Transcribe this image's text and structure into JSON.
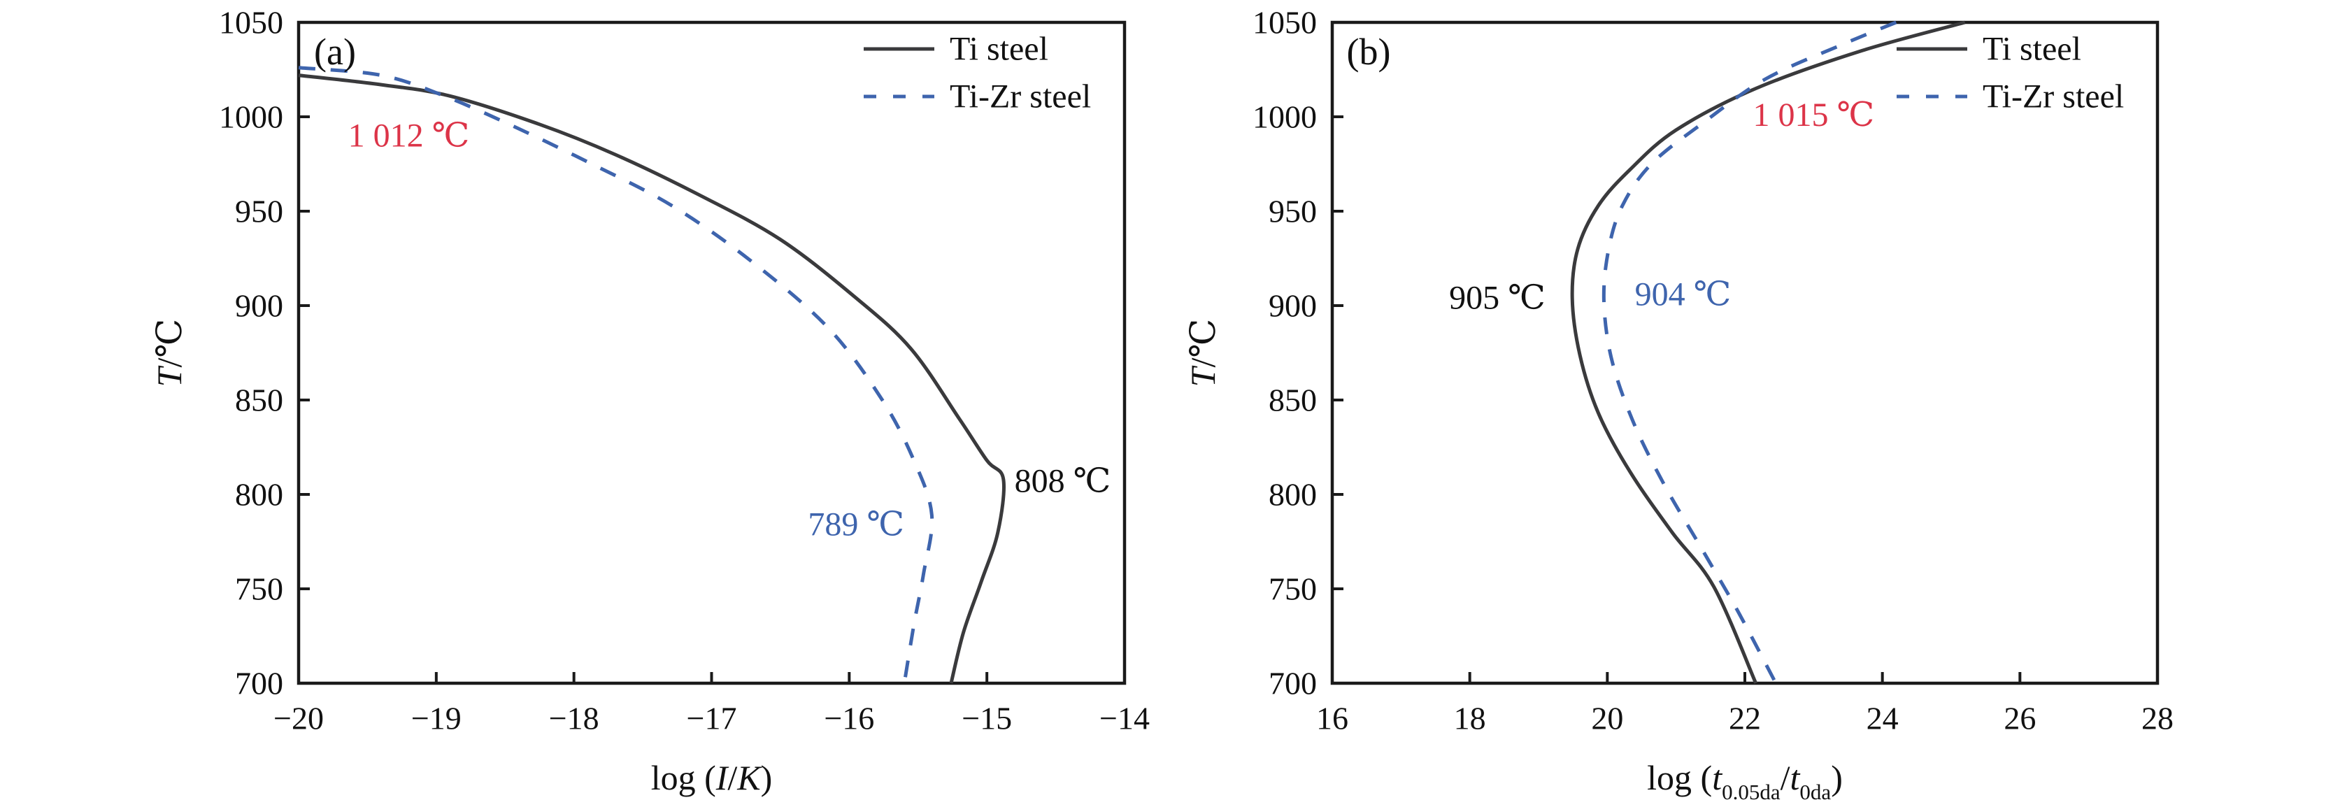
{
  "figure": {
    "background": "#ffffff",
    "colors": {
      "axis": "#1a1a1a",
      "text": "#111111",
      "ti_steel": "#3a3a3c",
      "ti_zr_steel": "#3e64ad",
      "highlight_red": "#dc3448"
    },
    "legend": {
      "items": [
        {
          "label": "Ti steel",
          "style": "solid",
          "color_key": "ti_steel"
        },
        {
          "label": "Ti-Zr steel",
          "style": "dashed",
          "color_key": "ti_zr_steel"
        }
      ]
    }
  },
  "chart_data": [
    {
      "type": "line",
      "panel": "(a)",
      "xlabel": "log (I/K)",
      "xlabel_rich": [
        {
          "t": "log ("
        },
        {
          "t": "I",
          "style": "italic"
        },
        {
          "t": "/"
        },
        {
          "t": "K",
          "style": "italic"
        },
        {
          "t": ")"
        }
      ],
      "ylabel": "T/℃",
      "ylabel_rich": [
        {
          "t": "T",
          "style": "italic"
        },
        {
          "t": "/℃"
        }
      ],
      "xlim": [
        -20,
        -14
      ],
      "ylim": [
        700,
        1050
      ],
      "xticks": {
        "values": [
          -20,
          -19,
          -18,
          -17,
          -16,
          -15,
          -14
        ],
        "labels": [
          "−20",
          "−19",
          "−18",
          "−17",
          "−16",
          "−15",
          "−14"
        ]
      },
      "yticks": {
        "values": [
          1050,
          1000,
          950,
          900,
          850,
          800,
          750,
          700
        ],
        "labels": [
          "1050",
          "1000",
          "950",
          "900",
          "850",
          "800",
          "750",
          "700"
        ]
      },
      "grid": false,
      "legend_position": "top-right",
      "series": [
        {
          "name": "Ti steel",
          "style": "solid",
          "color_key": "ti_steel",
          "points": [
            [
              -20,
              1022
            ],
            [
              -19.4,
              1017
            ],
            [
              -18.9,
              1011
            ],
            [
              -18.25,
              996
            ],
            [
              -17.7,
              980
            ],
            [
              -17.1,
              959
            ],
            [
              -16.5,
              935
            ],
            [
              -15.95,
              904
            ],
            [
              -15.55,
              877
            ],
            [
              -15.2,
              840
            ],
            [
              -15.0,
              818
            ],
            [
              -14.88,
              808
            ],
            [
              -14.92,
              780
            ],
            [
              -15.04,
              754
            ],
            [
              -15.17,
              727
            ],
            [
              -15.26,
              700
            ]
          ]
        },
        {
          "name": "Ti-Zr steel",
          "style": "dashed",
          "color_key": "ti_zr_steel",
          "points": [
            [
              -20,
              1026
            ],
            [
              -19.4,
              1022
            ],
            [
              -18.94,
              1011
            ],
            [
              -18.44,
              995
            ],
            [
              -17.87,
              975
            ],
            [
              -17.29,
              953
            ],
            [
              -16.72,
              924
            ],
            [
              -16.15,
              888
            ],
            [
              -15.76,
              850
            ],
            [
              -15.53,
              818
            ],
            [
              -15.4,
              789
            ],
            [
              -15.46,
              758
            ],
            [
              -15.53,
              731
            ],
            [
              -15.6,
              700
            ]
          ]
        }
      ],
      "annotations": [
        {
          "text": "1 012 ℃",
          "x": -19.2,
          "y": 990,
          "color": "red"
        },
        {
          "text": "808 ℃",
          "x": -14.45,
          "y": 807,
          "color": "black"
        },
        {
          "text": "789 ℃",
          "x": -15.95,
          "y": 784,
          "color": "blue"
        }
      ]
    },
    {
      "type": "line",
      "panel": "(b)",
      "xlabel": "log (t0.05da/t0da)",
      "xlabel_rich": [
        {
          "t": "log ("
        },
        {
          "t": "t",
          "style": "italic"
        },
        {
          "t": "0.05da",
          "style": "sub"
        },
        {
          "t": "/"
        },
        {
          "t": "t",
          "style": "italic"
        },
        {
          "t": "0da",
          "style": "sub"
        },
        {
          "t": ")"
        }
      ],
      "ylabel": "T/℃",
      "ylabel_rich": [
        {
          "t": "T",
          "style": "italic"
        },
        {
          "t": "/℃"
        }
      ],
      "xlim": [
        16,
        28
      ],
      "ylim": [
        700,
        1050
      ],
      "xticks": {
        "values": [
          16,
          18,
          20,
          22,
          24,
          26,
          28
        ],
        "labels": [
          "16",
          "18",
          "20",
          "22",
          "24",
          "26",
          "28"
        ]
      },
      "yticks": {
        "values": [
          1050,
          1000,
          950,
          900,
          850,
          800,
          750,
          700
        ],
        "labels": [
          "1050",
          "1000",
          "950",
          "900",
          "850",
          "800",
          "750",
          "700"
        ]
      },
      "grid": false,
      "legend_position": "top-right",
      "series": [
        {
          "name": "Ti steel",
          "style": "solid",
          "color_key": "ti_steel",
          "points": [
            [
              25.2,
              1050
            ],
            [
              23.7,
              1035
            ],
            [
              22.16,
              1015
            ],
            [
              21.0,
              993
            ],
            [
              20.33,
              972
            ],
            [
              19.87,
              953
            ],
            [
              19.57,
              930
            ],
            [
              19.49,
              904
            ],
            [
              19.6,
              874
            ],
            [
              19.87,
              843
            ],
            [
              20.33,
              812
            ],
            [
              20.94,
              780
            ],
            [
              21.55,
              751
            ],
            [
              22.16,
              700
            ]
          ]
        },
        {
          "name": "Ti-Zr steel",
          "style": "dashed",
          "color_key": "ti_zr_steel",
          "points": [
            [
              24.2,
              1050
            ],
            [
              23.4,
              1038
            ],
            [
              22.3,
              1020
            ],
            [
              21.4,
              997
            ],
            [
              20.64,
              975
            ],
            [
              20.22,
              953
            ],
            [
              20.02,
              930
            ],
            [
              19.95,
              903
            ],
            [
              20.06,
              872
            ],
            [
              20.37,
              839
            ],
            [
              20.83,
              805
            ],
            [
              21.36,
              772
            ],
            [
              21.9,
              738
            ],
            [
              22.45,
              700
            ]
          ]
        }
      ],
      "annotations": [
        {
          "text": "1 015 ℃",
          "x": 23.0,
          "y": 1001,
          "color": "red"
        },
        {
          "text": "905 ℃",
          "x": 18.4,
          "y": 904,
          "color": "black"
        },
        {
          "text": "904 ℃",
          "x": 21.1,
          "y": 906,
          "color": "blue"
        }
      ]
    }
  ]
}
